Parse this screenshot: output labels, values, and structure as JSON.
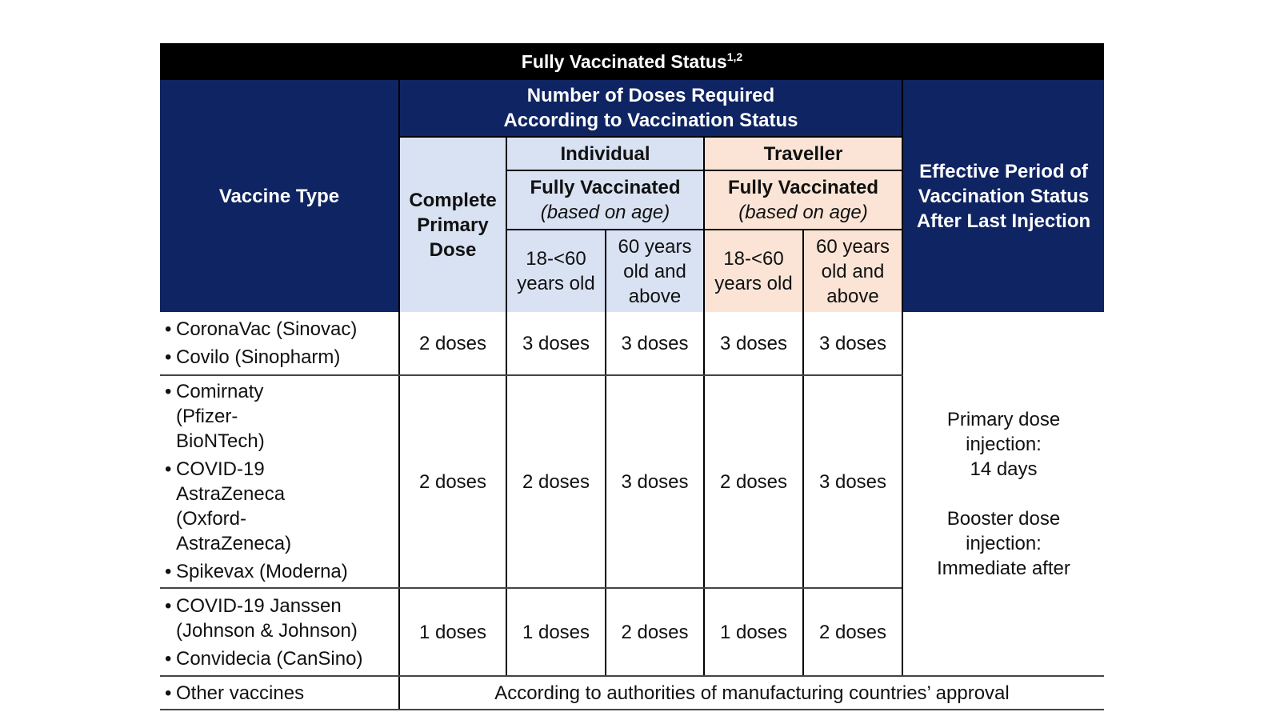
{
  "table": {
    "title": "Fully Vaccinated Status",
    "title_sup": "1,2",
    "header": {
      "vaccine_type": "Vaccine Type",
      "doses_required_line1": "Number of Doses Required",
      "doses_required_line2": "According to Vaccination Status",
      "complete_primary_line1": "Complete",
      "complete_primary_line2": "Primary",
      "complete_primary_line3": "Dose",
      "individual": "Individual",
      "traveller": "Traveller",
      "fully_vaccinated": "Fully Vaccinated",
      "based_on_age": "(based on age)",
      "age_18_line1": "18-<60",
      "age_18_line2": "years old",
      "age_60_line1": "60 years",
      "age_60_line2": "old and",
      "age_60_line3": "above",
      "effective_line1": "Effective Period of",
      "effective_line2": "Vaccination Status",
      "effective_line3": "After Last Injection"
    },
    "rows": [
      {
        "vaccines": [
          "CoronaVac (Sinovac)",
          "Covilo (Sinopharm)"
        ],
        "doses": [
          "2 doses",
          "3 doses",
          "3 doses",
          "3 doses",
          "3 doses"
        ]
      },
      {
        "vaccines": [
          "Comirnaty (Pfizer- BioNTech)",
          "COVID-19 AstraZeneca (Oxford-AstraZeneca)",
          "Spikevax (Moderna)"
        ],
        "doses": [
          "2 doses",
          "2 doses",
          "3 doses",
          "2 doses",
          "3 doses"
        ]
      },
      {
        "vaccines": [
          "COVID-19 Janssen (Johnson & Johnson)",
          "Convidecia (CanSino)"
        ],
        "doses": [
          "1 doses",
          "1 doses",
          "2 doses",
          "1 doses",
          "2 doses"
        ]
      }
    ],
    "effective": {
      "primary_line1": "Primary dose",
      "primary_line2": "injection:",
      "primary_line3": "14 days",
      "booster_line1": "Booster dose",
      "booster_line2": "injection:",
      "booster_line3": "Immediate after"
    },
    "other": {
      "label": "Other vaccines",
      "note": "According to authorities of manufacturing countries’ approval"
    }
  }
}
